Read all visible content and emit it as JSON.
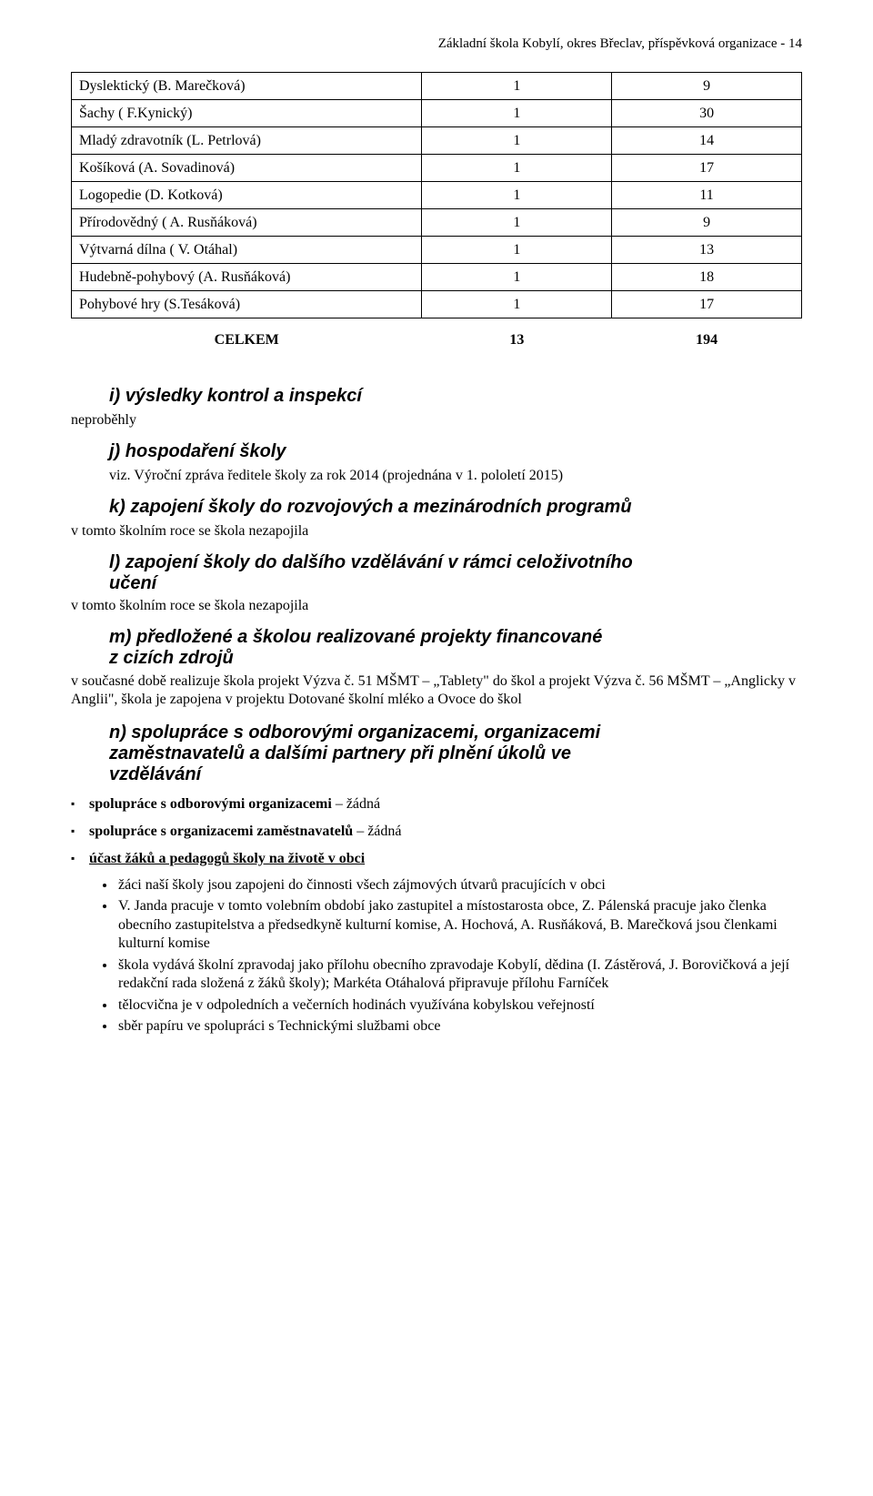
{
  "header": "Základní škola Kobylí, okres Břeclav, příspěvková organizace - 14",
  "table": {
    "rows": [
      {
        "name": "Dyslektický (B. Marečková)",
        "a": "1",
        "b": "9"
      },
      {
        "name": "Šachy ( F.Kynický)",
        "a": "1",
        "b": "30"
      },
      {
        "name": "Mladý zdravotník (L. Petrlová)",
        "a": "1",
        "b": "14"
      },
      {
        "name": "Košíková (A. Sovadinová)",
        "a": "1",
        "b": "17"
      },
      {
        "name": "Logopedie (D. Kotková)",
        "a": "1",
        "b": "11"
      },
      {
        "name": "Přírodovědný ( A. Rusňáková)",
        "a": "1",
        "b": "9"
      },
      {
        "name": "Výtvarná dílna ( V. Otáhal)",
        "a": "1",
        "b": "13"
      },
      {
        "name": "Hudebně-pohybový (A. Rusňáková)",
        "a": "1",
        "b": "18"
      },
      {
        "name": "Pohybové hry (S.Tesáková)",
        "a": "1",
        "b": "17"
      }
    ],
    "totals": {
      "label": "CELKEM",
      "a": "13",
      "b": "194"
    }
  },
  "sections": {
    "i": {
      "title": "i)  výsledky kontrol a inspekcí",
      "body": "neproběhly"
    },
    "j": {
      "title": "j)  hospodaření školy",
      "body": "viz. Výroční zpráva ředitele školy za rok 2014 (projednána v 1. pololetí 2015)"
    },
    "k": {
      "title": "k) zapojení školy do rozvojových a mezinárodních programů",
      "body": "v tomto školním roce se škola nezapojila"
    },
    "l": {
      "title_l1": "l)  zapojení školy do dalšího vzdělávání v rámci celoživotního",
      "title_l2": "učení",
      "body": "v tomto školním roce se škola nezapojila"
    },
    "m": {
      "title_l1": "m) předložené a školou realizované projekty financované",
      "title_l2": "z cizích zdrojů",
      "body": "v současné době realizuje škola projekt Výzva č. 51 MŠMT – „Tablety\" do škol a projekt Výzva č. 56 MŠMT – „Anglicky v Anglii\", škola je zapojena v projektu Dotované školní mléko a Ovoce do škol"
    },
    "n": {
      "title_l1": "n) spolupráce s odborovými organizacemi, organizacemi",
      "title_l2": "zaměstnavatelů a dalšími partnery při plnění úkolů ve",
      "title_l3": "vzdělávání"
    }
  },
  "sq_bullets": [
    {
      "bold": "spolupráce s odborovými organizacemi",
      "rest": " – žádná",
      "underline": false
    },
    {
      "bold": "spolupráce s organizacemi zaměstnavatelů",
      "rest": " – žádná",
      "underline": false
    },
    {
      "bold": "účast žáků a pedagogů školy na životě v obci",
      "rest": "",
      "underline": true
    }
  ],
  "round_bullets": [
    "žáci naší školy jsou zapojeni do činnosti všech zájmových útvarů pracujících v obci",
    "V. Janda pracuje v tomto volebním období jako zastupitel a místostarosta obce, Z. Pálenská pracuje jako členka obecního zastupitelstva a předsedkyně kulturní komise,  A. Hochová, A. Rusňáková, B. Marečková  jsou členkami kulturní komise",
    "škola vydává školní zpravodaj jako přílohu obecního zpravodaje Kobylí, dědina (I. Zástěrová, J. Borovičková a její redakční rada složená z žáků školy); Markéta Otáhalová připravuje přílohu Farníček",
    "tělocvična je v odpoledních a večerních hodinách využívána kobylskou veřejností",
    "sběr papíru ve spolupráci s Technickými službami obce"
  ]
}
